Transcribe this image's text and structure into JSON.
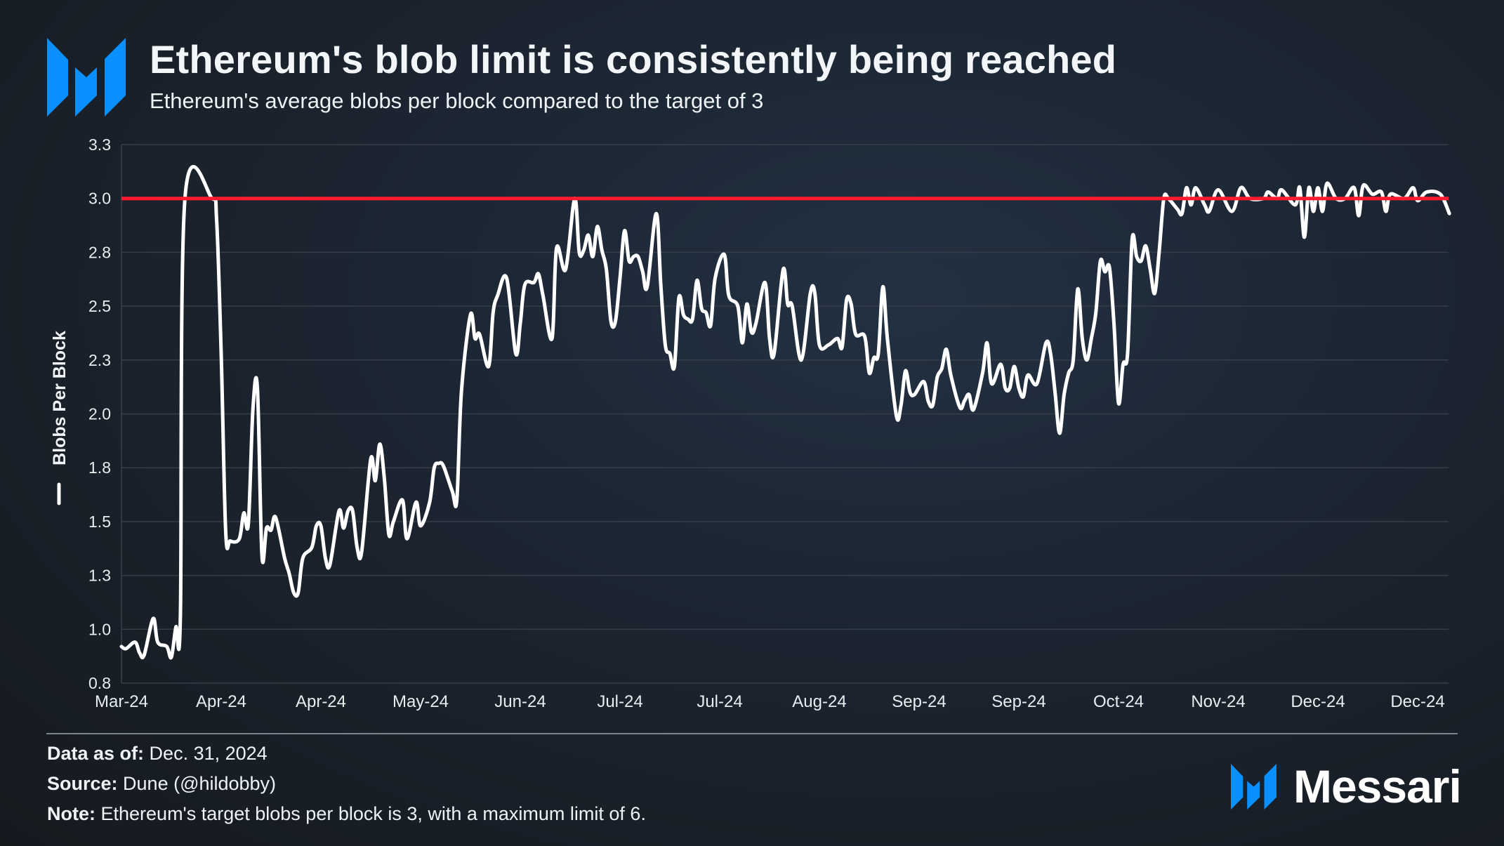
{
  "header": {
    "title": "Ethereum's blob limit is consistently being reached",
    "subtitle": "Ethereum's average blobs per block compared to the target of 3",
    "logo_icon": "messari-m-logo"
  },
  "chart_data": {
    "type": "line",
    "title": "Ethereum's blob limit is consistently being reached",
    "subtitle": "Ethereum's average blobs per block compared to the target of 3",
    "ylabel": "Blobs Per Block",
    "xlabel": "",
    "ylim": [
      0.75,
      3.25
    ],
    "y_ticks": [
      0.75,
      1.0,
      1.25,
      1.5,
      1.75,
      2.0,
      2.25,
      2.5,
      2.75,
      3.0,
      3.25
    ],
    "y_tick_labels": [
      "0.8",
      "1.0",
      "1.3",
      "1.5",
      "1.8",
      "2.0",
      "2.3",
      "2.5",
      "2.8",
      "3.0",
      "3.3"
    ],
    "xlim": [
      "2024-03-13",
      "2024-12-31"
    ],
    "x_ticks": [
      "2024-03-13",
      "2024-04-04",
      "2024-04-26",
      "2024-05-18",
      "2024-06-09",
      "2024-07-01",
      "2024-07-23",
      "2024-08-14",
      "2024-09-05",
      "2024-09-27",
      "2024-10-19",
      "2024-11-10",
      "2024-12-02",
      "2024-12-24"
    ],
    "x_tick_labels": [
      "Mar-24",
      "Apr-24",
      "Apr-24",
      "May-24",
      "Jun-24",
      "Jul-24",
      "Jul-24",
      "Aug-24",
      "Sep-24",
      "Sep-24",
      "Oct-24",
      "Nov-24",
      "Dec-24",
      "Dec-24"
    ],
    "grid": "horizontal",
    "legend": "left, along y-axis label",
    "target_line": {
      "value": 3.0,
      "color": "#ff1a2e"
    },
    "series": [
      {
        "name": "Blobs Per Block",
        "color": "#ffffff",
        "points": [
          [
            "2024-03-13",
            0.92
          ],
          [
            "2024-03-14",
            0.91
          ],
          [
            "2024-03-16",
            0.94
          ],
          [
            "2024-03-17",
            0.89
          ],
          [
            "2024-03-18",
            0.88
          ],
          [
            "2024-03-20",
            1.05
          ],
          [
            "2024-03-21",
            0.94
          ],
          [
            "2024-03-23",
            0.92
          ],
          [
            "2024-03-24",
            0.87
          ],
          [
            "2024-03-25",
            1.01
          ],
          [
            "2024-03-26",
            1.06
          ],
          [
            "2024-03-27",
            3.0
          ],
          [
            "2024-04-02",
            3.0
          ],
          [
            "2024-04-03",
            2.9
          ],
          [
            "2024-04-04",
            2.28
          ],
          [
            "2024-04-05",
            1.45
          ],
          [
            "2024-04-06",
            1.41
          ],
          [
            "2024-04-08",
            1.42
          ],
          [
            "2024-04-09",
            1.54
          ],
          [
            "2024-04-10",
            1.49
          ],
          [
            "2024-04-11",
            2.02
          ],
          [
            "2024-04-12",
            2.12
          ],
          [
            "2024-04-13",
            1.34
          ],
          [
            "2024-04-14",
            1.47
          ],
          [
            "2024-04-15",
            1.46
          ],
          [
            "2024-04-16",
            1.52
          ],
          [
            "2024-04-18",
            1.33
          ],
          [
            "2024-04-19",
            1.26
          ],
          [
            "2024-04-20",
            1.17
          ],
          [
            "2024-04-21",
            1.17
          ],
          [
            "2024-04-22",
            1.33
          ],
          [
            "2024-04-24",
            1.38
          ],
          [
            "2024-04-25",
            1.48
          ],
          [
            "2024-04-26",
            1.48
          ],
          [
            "2024-04-27",
            1.33
          ],
          [
            "2024-04-28",
            1.3
          ],
          [
            "2024-04-30",
            1.55
          ],
          [
            "2024-05-01",
            1.47
          ],
          [
            "2024-05-02",
            1.55
          ],
          [
            "2024-05-03",
            1.55
          ],
          [
            "2024-05-04",
            1.38
          ],
          [
            "2024-05-05",
            1.36
          ],
          [
            "2024-05-07",
            1.79
          ],
          [
            "2024-05-08",
            1.69
          ],
          [
            "2024-05-09",
            1.86
          ],
          [
            "2024-05-10",
            1.7
          ],
          [
            "2024-05-11",
            1.44
          ],
          [
            "2024-05-12",
            1.5
          ],
          [
            "2024-05-14",
            1.6
          ],
          [
            "2024-05-15",
            1.42
          ],
          [
            "2024-05-17",
            1.59
          ],
          [
            "2024-05-18",
            1.48
          ],
          [
            "2024-05-20",
            1.59
          ],
          [
            "2024-05-21",
            1.75
          ],
          [
            "2024-05-22",
            1.77
          ],
          [
            "2024-05-23",
            1.76
          ],
          [
            "2024-05-25",
            1.64
          ],
          [
            "2024-05-26",
            1.6
          ],
          [
            "2024-05-27",
            2.1
          ],
          [
            "2024-05-29",
            2.46
          ],
          [
            "2024-05-30",
            2.35
          ],
          [
            "2024-05-31",
            2.37
          ],
          [
            "2024-06-02",
            2.22
          ],
          [
            "2024-06-03",
            2.47
          ],
          [
            "2024-06-04",
            2.55
          ],
          [
            "2024-06-06",
            2.63
          ],
          [
            "2024-06-08",
            2.28
          ],
          [
            "2024-06-09",
            2.42
          ],
          [
            "2024-06-10",
            2.6
          ],
          [
            "2024-06-12",
            2.61
          ],
          [
            "2024-06-13",
            2.65
          ],
          [
            "2024-06-14",
            2.55
          ],
          [
            "2024-06-16",
            2.35
          ],
          [
            "2024-06-17",
            2.77
          ],
          [
            "2024-06-19",
            2.67
          ],
          [
            "2024-06-21",
            3.0
          ],
          [
            "2024-06-22",
            2.75
          ],
          [
            "2024-06-23",
            2.76
          ],
          [
            "2024-06-24",
            2.83
          ],
          [
            "2024-06-25",
            2.73
          ],
          [
            "2024-06-26",
            2.87
          ],
          [
            "2024-06-27",
            2.76
          ],
          [
            "2024-06-28",
            2.67
          ],
          [
            "2024-06-29",
            2.43
          ],
          [
            "2024-06-30",
            2.43
          ],
          [
            "2024-07-01",
            2.63
          ],
          [
            "2024-07-02",
            2.85
          ],
          [
            "2024-07-03",
            2.71
          ],
          [
            "2024-07-04",
            2.73
          ],
          [
            "2024-07-05",
            2.73
          ],
          [
            "2024-07-06",
            2.66
          ],
          [
            "2024-07-07",
            2.59
          ],
          [
            "2024-07-09",
            2.93
          ],
          [
            "2024-07-10",
            2.6
          ],
          [
            "2024-07-11",
            2.32
          ],
          [
            "2024-07-12",
            2.28
          ],
          [
            "2024-07-13",
            2.22
          ],
          [
            "2024-07-14",
            2.54
          ],
          [
            "2024-07-15",
            2.46
          ],
          [
            "2024-07-16",
            2.44
          ],
          [
            "2024-07-17",
            2.44
          ],
          [
            "2024-07-18",
            2.62
          ],
          [
            "2024-07-19",
            2.49
          ],
          [
            "2024-07-20",
            2.47
          ],
          [
            "2024-07-21",
            2.41
          ],
          [
            "2024-07-22",
            2.63
          ],
          [
            "2024-07-24",
            2.74
          ],
          [
            "2024-07-25",
            2.55
          ],
          [
            "2024-07-27",
            2.5
          ],
          [
            "2024-07-28",
            2.33
          ],
          [
            "2024-07-29",
            2.51
          ],
          [
            "2024-07-30",
            2.38
          ],
          [
            "2024-07-31",
            2.42
          ],
          [
            "2024-08-02",
            2.61
          ],
          [
            "2024-08-03",
            2.35
          ],
          [
            "2024-08-04",
            2.28
          ],
          [
            "2024-08-06",
            2.67
          ],
          [
            "2024-08-07",
            2.51
          ],
          [
            "2024-08-08",
            2.5
          ],
          [
            "2024-08-10",
            2.25
          ],
          [
            "2024-08-12",
            2.56
          ],
          [
            "2024-08-13",
            2.56
          ],
          [
            "2024-08-14",
            2.32
          ],
          [
            "2024-08-16",
            2.32
          ],
          [
            "2024-08-18",
            2.35
          ],
          [
            "2024-08-19",
            2.31
          ],
          [
            "2024-08-20",
            2.53
          ],
          [
            "2024-08-21",
            2.51
          ],
          [
            "2024-08-22",
            2.37
          ],
          [
            "2024-08-24",
            2.36
          ],
          [
            "2024-08-25",
            2.19
          ],
          [
            "2024-08-26",
            2.26
          ],
          [
            "2024-08-27",
            2.28
          ],
          [
            "2024-08-28",
            2.59
          ],
          [
            "2024-08-29",
            2.35
          ],
          [
            "2024-08-31",
            1.99
          ],
          [
            "2024-09-01",
            2.04
          ],
          [
            "2024-09-02",
            2.2
          ],
          [
            "2024-09-03",
            2.1
          ],
          [
            "2024-09-04",
            2.09
          ],
          [
            "2024-09-06",
            2.15
          ],
          [
            "2024-09-07",
            2.06
          ],
          [
            "2024-09-08",
            2.04
          ],
          [
            "2024-09-09",
            2.17
          ],
          [
            "2024-09-10",
            2.21
          ],
          [
            "2024-09-11",
            2.3
          ],
          [
            "2024-09-12",
            2.18
          ],
          [
            "2024-09-14",
            2.03
          ],
          [
            "2024-09-15",
            2.06
          ],
          [
            "2024-09-16",
            2.09
          ],
          [
            "2024-09-17",
            2.02
          ],
          [
            "2024-09-19",
            2.19
          ],
          [
            "2024-09-20",
            2.33
          ],
          [
            "2024-09-21",
            2.14
          ],
          [
            "2024-09-23",
            2.23
          ],
          [
            "2024-09-24",
            2.12
          ],
          [
            "2024-09-25",
            2.12
          ],
          [
            "2024-09-26",
            2.22
          ],
          [
            "2024-09-27",
            2.12
          ],
          [
            "2024-09-28",
            2.08
          ],
          [
            "2024-09-29",
            2.18
          ],
          [
            "2024-10-01",
            2.14
          ],
          [
            "2024-10-03",
            2.33
          ],
          [
            "2024-10-04",
            2.28
          ],
          [
            "2024-10-05",
            2.1
          ],
          [
            "2024-10-06",
            1.91
          ],
          [
            "2024-10-07",
            2.09
          ],
          [
            "2024-10-08",
            2.19
          ],
          [
            "2024-10-09",
            2.25
          ],
          [
            "2024-10-10",
            2.58
          ],
          [
            "2024-10-11",
            2.35
          ],
          [
            "2024-10-12",
            2.25
          ],
          [
            "2024-10-13",
            2.35
          ],
          [
            "2024-10-14",
            2.47
          ],
          [
            "2024-10-15",
            2.71
          ],
          [
            "2024-10-16",
            2.66
          ],
          [
            "2024-10-17",
            2.68
          ],
          [
            "2024-10-18",
            2.42
          ],
          [
            "2024-10-19",
            2.05
          ],
          [
            "2024-10-20",
            2.23
          ],
          [
            "2024-10-21",
            2.28
          ],
          [
            "2024-10-22",
            2.81
          ],
          [
            "2024-10-23",
            2.73
          ],
          [
            "2024-10-24",
            2.71
          ],
          [
            "2024-10-25",
            2.78
          ],
          [
            "2024-10-26",
            2.67
          ],
          [
            "2024-10-27",
            2.56
          ],
          [
            "2024-10-28",
            2.76
          ],
          [
            "2024-10-29",
            3.0
          ],
          [
            "2024-10-30",
            3.0
          ],
          [
            "2024-11-01",
            2.95
          ],
          [
            "2024-11-02",
            2.93
          ],
          [
            "2024-11-03",
            3.05
          ],
          [
            "2024-11-04",
            2.97
          ],
          [
            "2024-11-05",
            3.05
          ],
          [
            "2024-11-07",
            2.97
          ],
          [
            "2024-11-08",
            2.94
          ],
          [
            "2024-11-10",
            3.04
          ],
          [
            "2024-11-13",
            2.94
          ],
          [
            "2024-11-15",
            3.05
          ],
          [
            "2024-11-17",
            3.0
          ],
          [
            "2024-11-20",
            3.0
          ],
          [
            "2024-11-21",
            3.03
          ],
          [
            "2024-11-23",
            3.0
          ],
          [
            "2024-11-24",
            3.04
          ],
          [
            "2024-11-27",
            2.97
          ],
          [
            "2024-11-28",
            3.05
          ],
          [
            "2024-11-29",
            2.82
          ],
          [
            "2024-11-30",
            3.05
          ],
          [
            "2024-12-01",
            2.94
          ],
          [
            "2024-12-02",
            3.05
          ],
          [
            "2024-12-03",
            2.94
          ],
          [
            "2024-12-04",
            3.07
          ],
          [
            "2024-12-06",
            3.0
          ],
          [
            "2024-12-08",
            3.0
          ],
          [
            "2024-12-10",
            3.05
          ],
          [
            "2024-12-11",
            2.92
          ],
          [
            "2024-12-12",
            3.06
          ],
          [
            "2024-12-14",
            3.02
          ],
          [
            "2024-12-16",
            3.03
          ],
          [
            "2024-12-17",
            2.94
          ],
          [
            "2024-12-18",
            3.02
          ],
          [
            "2024-12-21",
            3.0
          ],
          [
            "2024-12-23",
            3.05
          ],
          [
            "2024-12-24",
            2.99
          ],
          [
            "2024-12-26",
            3.03
          ],
          [
            "2024-12-29",
            3.02
          ],
          [
            "2024-12-31",
            2.93
          ]
        ]
      }
    ]
  },
  "footer": {
    "data_as_of_label": "Data as of:",
    "data_as_of_value": " Dec. 31, 2024",
    "source_label": "Source:",
    "source_value": " Dune (@hildobby)",
    "note_label": "Note:",
    "note_value": " Ethereum's target blobs per block is 3, with a maximum limit of 6.",
    "brand_name": "Messari",
    "brand_icon": "messari-m-logo",
    "brand_color": "#0a8fff"
  }
}
